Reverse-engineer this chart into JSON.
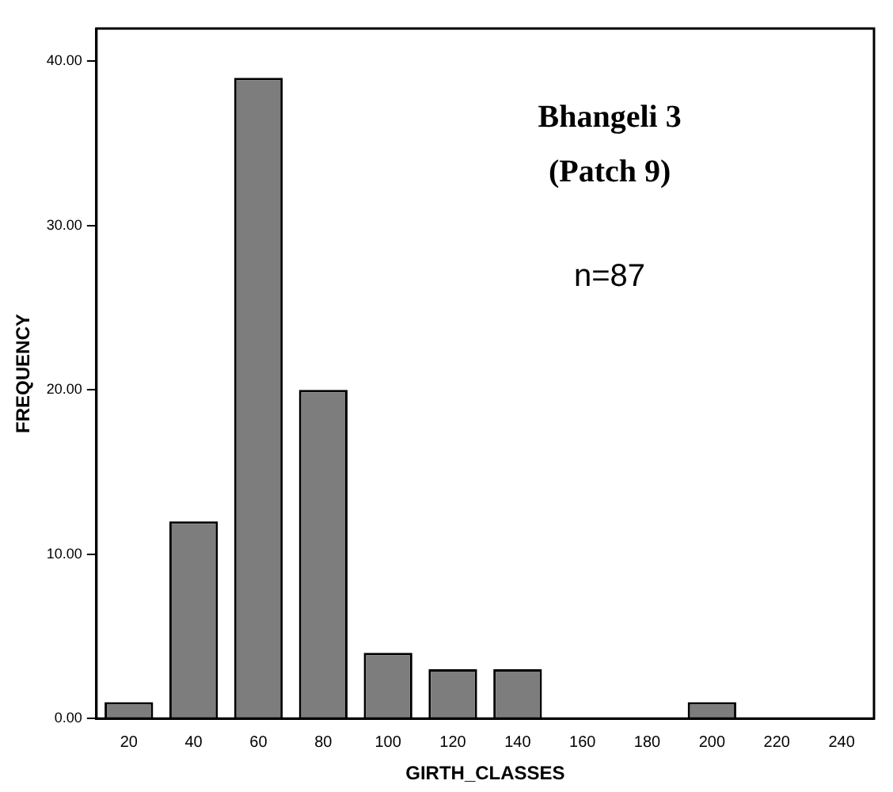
{
  "chart_data": {
    "type": "bar",
    "xlabel": "GIRTH_CLASSES",
    "ylabel": "FREQUENCY",
    "categories": [
      "20",
      "40",
      "60",
      "80",
      "100",
      "120",
      "140",
      "160",
      "180",
      "200",
      "220",
      "240"
    ],
    "values": [
      1,
      12,
      39,
      20,
      4,
      3,
      3,
      0,
      0,
      1,
      0,
      0
    ],
    "color": "#7d7d7d",
    "ylim": [
      0,
      42
    ],
    "yticks": [
      {
        "value": 0,
        "label": "0.00"
      },
      {
        "value": 10,
        "label": "10.00"
      },
      {
        "value": 20,
        "label": "20.00"
      },
      {
        "value": 30,
        "label": "30.00"
      },
      {
        "value": 40,
        "label": "40.00"
      }
    ],
    "grid": false,
    "legend": false,
    "annotations": [
      "Bhangeli 3",
      "(Patch 9)",
      "n=87"
    ]
  }
}
